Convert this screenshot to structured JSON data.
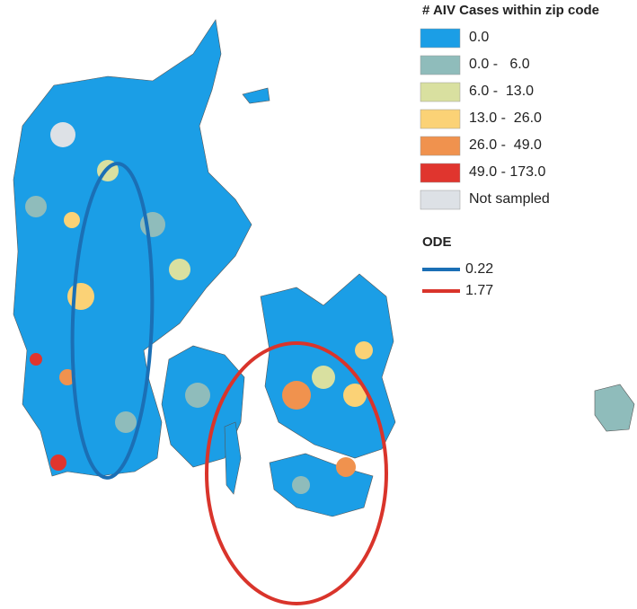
{
  "legend": {
    "title": "# AIV Cases within zip code",
    "items": [
      {
        "label": "0.0",
        "color": "#1b9ee6"
      },
      {
        "label": "0.0 -   6.0",
        "color": "#8fbcbb"
      },
      {
        "label": "6.0 -  13.0",
        "color": "#d9e0a0"
      },
      {
        "label": "13.0 -  26.0",
        "color": "#fbd276"
      },
      {
        "label": "26.0 -  49.0",
        "color": "#f0924e"
      },
      {
        "label": "49.0 - 173.0",
        "color": "#e0352e"
      },
      {
        "label": "Not sampled",
        "color": "#dde1e6"
      }
    ]
  },
  "ode": {
    "title": "ODE",
    "items": [
      {
        "label": "0.22",
        "color": "#1b6fb5"
      },
      {
        "label": "1.77",
        "color": "#d9342b"
      }
    ]
  }
}
